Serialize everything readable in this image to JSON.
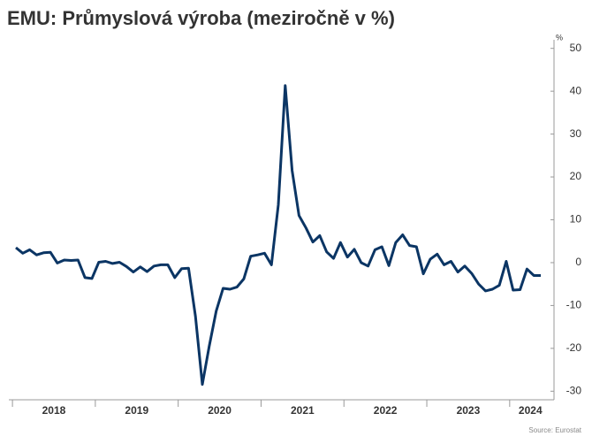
{
  "chart_data": {
    "type": "line",
    "title": "EMU: Průmyslová výroba (meziročně v %)",
    "y_unit": "%",
    "source": "Source: Eurostat",
    "categories": [
      null,
      null,
      null,
      null,
      null,
      null,
      "2018",
      null,
      null,
      null,
      null,
      null,
      null,
      null,
      null,
      null,
      null,
      null,
      "2019",
      null,
      null,
      null,
      null,
      null,
      null,
      null,
      null,
      null,
      null,
      null,
      "2020",
      null,
      null,
      null,
      null,
      null,
      null,
      null,
      null,
      null,
      null,
      null,
      "2021",
      null,
      null,
      null,
      null,
      null,
      null,
      null,
      null,
      null,
      null,
      null,
      "2022",
      null,
      null,
      null,
      null,
      null,
      null,
      null,
      null,
      null,
      null,
      null,
      "2023",
      null,
      null,
      null,
      null,
      null,
      null,
      null,
      null,
      "2024",
      null
    ],
    "series": [
      {
        "name": "EMU",
        "color": "#0b3564",
        "values": [
          3.5,
          2.2,
          3.0,
          1.8,
          2.3,
          2.4,
          -0.1,
          0.6,
          0.5,
          0.6,
          -3.5,
          -3.7,
          0.1,
          0.3,
          -0.2,
          0.1,
          -0.9,
          -2.2,
          -1.0,
          -2.1,
          -0.8,
          -0.5,
          -0.5,
          -3.5,
          -1.4,
          -1.3,
          -12.5,
          -28.4,
          -19.5,
          -11.3,
          -6.0,
          -6.2,
          -5.7,
          -3.8,
          1.5,
          1.8,
          2.2,
          -0.5,
          13.5,
          41.3,
          21.5,
          11.0,
          8.1,
          4.8,
          6.3,
          2.5,
          1.0,
          4.7,
          1.3,
          3.1,
          0.0,
          -0.8,
          3.0,
          3.7,
          -0.7,
          4.7,
          6.5,
          4.0,
          3.7,
          -2.6,
          0.8,
          2.0,
          -0.5,
          0.3,
          -2.2,
          -0.8,
          -2.5,
          -5.0,
          -6.6,
          -6.2,
          -5.3,
          0.3,
          -6.4,
          -6.3,
          -1.5,
          -3.0,
          -3.0
        ]
      }
    ],
    "ylim": [
      -32,
      52
    ],
    "yticks": [
      -30,
      -20,
      -10,
      0,
      10,
      20,
      30,
      40,
      50
    ]
  }
}
